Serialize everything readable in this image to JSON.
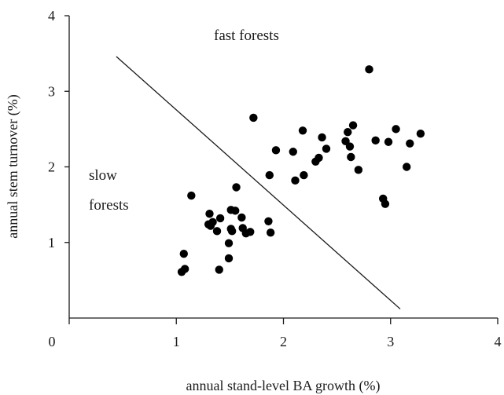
{
  "chart_data": {
    "type": "scatter",
    "title": "",
    "xlabel": "annual stand-level BA growth (%)",
    "ylabel": "annual stem turnover (%)",
    "xlim": [
      0,
      4
    ],
    "ylim": [
      0,
      4
    ],
    "xticks": [
      "0",
      "1",
      "2",
      "3",
      "4"
    ],
    "yticks": [
      "1",
      "2",
      "3",
      "4"
    ],
    "grid": false,
    "legend": "none",
    "points": [
      {
        "x": 1.05,
        "y": 0.61
      },
      {
        "x": 1.08,
        "y": 0.65
      },
      {
        "x": 1.07,
        "y": 0.85
      },
      {
        "x": 1.14,
        "y": 1.62
      },
      {
        "x": 1.3,
        "y": 1.24
      },
      {
        "x": 1.31,
        "y": 1.38
      },
      {
        "x": 1.32,
        "y": 1.22
      },
      {
        "x": 1.34,
        "y": 1.27
      },
      {
        "x": 1.38,
        "y": 1.15
      },
      {
        "x": 1.4,
        "y": 0.64
      },
      {
        "x": 1.41,
        "y": 1.32
      },
      {
        "x": 1.49,
        "y": 0.79
      },
      {
        "x": 1.49,
        "y": 0.99
      },
      {
        "x": 1.51,
        "y": 1.18
      },
      {
        "x": 1.51,
        "y": 1.43
      },
      {
        "x": 1.52,
        "y": 1.15
      },
      {
        "x": 1.55,
        "y": 1.42
      },
      {
        "x": 1.56,
        "y": 1.73
      },
      {
        "x": 1.61,
        "y": 1.33
      },
      {
        "x": 1.62,
        "y": 1.19
      },
      {
        "x": 1.65,
        "y": 1.12
      },
      {
        "x": 1.69,
        "y": 1.14
      },
      {
        "x": 1.72,
        "y": 2.65
      },
      {
        "x": 1.86,
        "y": 1.28
      },
      {
        "x": 1.87,
        "y": 1.89
      },
      {
        "x": 1.88,
        "y": 1.13
      },
      {
        "x": 1.93,
        "y": 2.22
      },
      {
        "x": 2.09,
        "y": 2.2
      },
      {
        "x": 2.11,
        "y": 1.82
      },
      {
        "x": 2.18,
        "y": 2.48
      },
      {
        "x": 2.19,
        "y": 1.89
      },
      {
        "x": 2.3,
        "y": 2.07
      },
      {
        "x": 2.33,
        "y": 2.12
      },
      {
        "x": 2.36,
        "y": 2.39
      },
      {
        "x": 2.4,
        "y": 2.24
      },
      {
        "x": 2.58,
        "y": 2.34
      },
      {
        "x": 2.6,
        "y": 2.46
      },
      {
        "x": 2.62,
        "y": 2.27
      },
      {
        "x": 2.63,
        "y": 2.13
      },
      {
        "x": 2.65,
        "y": 2.55
      },
      {
        "x": 2.7,
        "y": 1.96
      },
      {
        "x": 2.8,
        "y": 3.29
      },
      {
        "x": 2.86,
        "y": 2.35
      },
      {
        "x": 2.93,
        "y": 1.58
      },
      {
        "x": 2.95,
        "y": 1.51
      },
      {
        "x": 2.98,
        "y": 2.33
      },
      {
        "x": 3.05,
        "y": 2.5
      },
      {
        "x": 3.15,
        "y": 2.0
      },
      {
        "x": 3.18,
        "y": 2.31
      },
      {
        "x": 3.28,
        "y": 2.44
      }
    ],
    "divider_line": {
      "from": {
        "x": 0.44,
        "y": 3.46
      },
      "to": {
        "x": 3.09,
        "y": 0.12
      }
    },
    "annotations": [
      "fast forests",
      "slow",
      "forests"
    ]
  }
}
